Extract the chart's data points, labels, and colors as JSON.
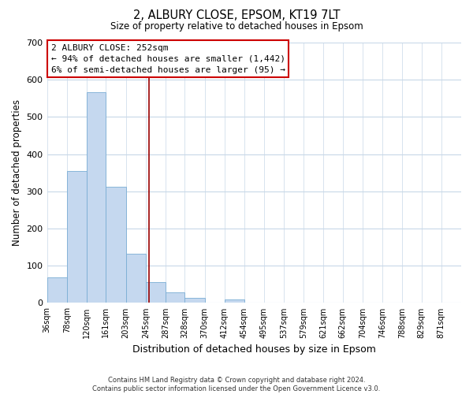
{
  "title": "2, ALBURY CLOSE, EPSOM, KT19 7LT",
  "subtitle": "Size of property relative to detached houses in Epsom",
  "xlabel": "Distribution of detached houses by size in Epsom",
  "ylabel": "Number of detached properties",
  "bar_labels": [
    "36sqm",
    "78sqm",
    "120sqm",
    "161sqm",
    "203sqm",
    "245sqm",
    "287sqm",
    "328sqm",
    "370sqm",
    "412sqm",
    "454sqm",
    "495sqm",
    "537sqm",
    "579sqm",
    "621sqm",
    "662sqm",
    "704sqm",
    "746sqm",
    "788sqm",
    "829sqm",
    "871sqm"
  ],
  "bar_values": [
    68,
    355,
    567,
    312,
    133,
    57,
    28,
    14,
    0,
    10,
    0,
    0,
    0,
    0,
    0,
    0,
    0,
    0,
    0,
    0,
    0
  ],
  "bar_color": "#c5d8ef",
  "bar_edge_color": "#7aadd4",
  "grid_color": "#c8d8e8",
  "annotation_line1": "2 ALBURY CLOSE: 252sqm",
  "annotation_line2": "← 94% of detached houses are smaller (1,442)",
  "annotation_line3": "6% of semi-detached houses are larger (95) →",
  "annotation_box_color": "#ffffff",
  "annotation_box_edge": "#cc0000",
  "vline_x": 252,
  "vline_color": "#990000",
  "ylim": [
    0,
    700
  ],
  "yticks": [
    0,
    100,
    200,
    300,
    400,
    500,
    600,
    700
  ],
  "footnote": "Contains HM Land Registry data © Crown copyright and database right 2024.\nContains public sector information licensed under the Open Government Licence v3.0.",
  "bin_edges": [
    36,
    78,
    120,
    161,
    203,
    245,
    287,
    328,
    370,
    412,
    454,
    495,
    537,
    579,
    621,
    662,
    704,
    746,
    788,
    829,
    871,
    913
  ]
}
